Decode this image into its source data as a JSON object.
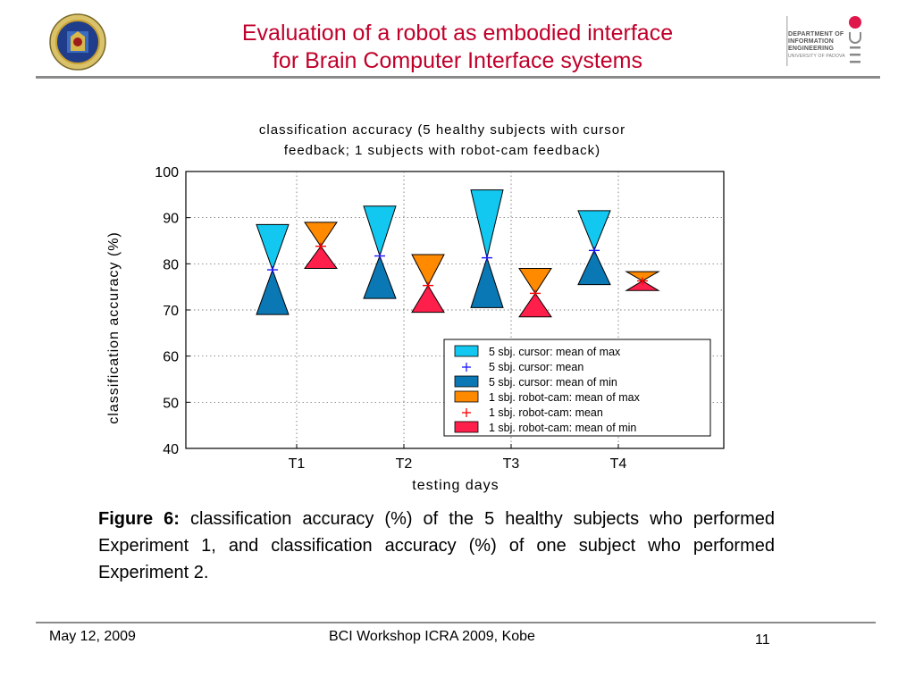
{
  "slide": {
    "title_line1": "Evaluation of a robot as embodied interface",
    "title_line2": "for Brain Computer Interface systems",
    "dept_lines": [
      "DEPARTMENT OF",
      "INFORMATION",
      "ENGINEERING",
      "UNIVERSITY OF PADOVA"
    ],
    "caption_label": "Figure 6:",
    "caption_text": " classification accuracy (%) of the 5 healthy subjects who performed Experiment 1, and classification accuracy (%) of one subject who performed Experiment 2.",
    "footer_date": "May 12, 2009",
    "footer_center": "BCI Workshop ICRA 2009, Kobe",
    "footer_page": "11",
    "title_color": "#c0002a"
  },
  "chart_data": {
    "type": "bowtie",
    "title_line1": "classification accuracy (5 healthy subjects with cursor",
    "title_line2": "feedback; 1 subjects with robot-cam feedback)",
    "xlabel": "testing days",
    "ylabel": "classification accuracy (%)",
    "ylim": [
      40,
      100
    ],
    "yticks": [
      "40",
      "50",
      "60",
      "70",
      "80",
      "90",
      "100"
    ],
    "categories": [
      "T1",
      "T2",
      "T3",
      "T4"
    ],
    "grid": true,
    "legend_position": "bottom-right",
    "series": [
      {
        "name_max": "5 sbj. cursor:    mean of max",
        "name_mean": "5 sbj. cursor:    mean",
        "name_min": "5 sbj. cursor:    mean of min",
        "color_max": "#12c8f0",
        "color_min": "#0a78b4",
        "mean_color": "#1a1aff",
        "max": [
          88.5,
          92.5,
          96,
          91.5
        ],
        "mean": [
          78.7,
          81.7,
          81.3,
          82.9
        ],
        "min": [
          69,
          72.5,
          70.5,
          75.5
        ]
      },
      {
        "name_max": "1 sbj. robot-cam: mean of max",
        "name_mean": "1 sbj. robot-cam: mean",
        "name_min": "1 sbj. robot-cam: mean of min",
        "color_max": "#ff8a00",
        "color_min": "#ff1f4b",
        "mean_color": "#ff0000",
        "max": [
          89,
          82,
          79,
          78.3
        ],
        "mean": [
          83.8,
          75.3,
          73.6,
          76.3
        ],
        "min": [
          79,
          69.5,
          68.5,
          74.2
        ]
      }
    ]
  }
}
